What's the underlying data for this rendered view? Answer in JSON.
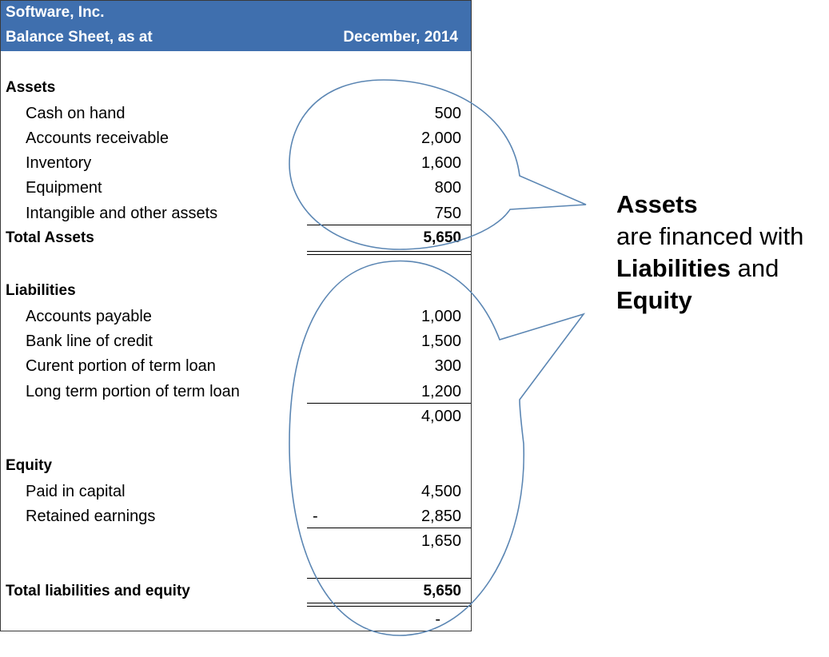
{
  "header": {
    "company": "Software, Inc.",
    "subtitle": "Balance Sheet, as at",
    "date": "December, 2014"
  },
  "assets": {
    "heading": "Assets",
    "items": [
      {
        "label": "Cash on hand",
        "value": "500"
      },
      {
        "label": "Accounts receivable",
        "value": "2,000"
      },
      {
        "label": "Inventory",
        "value": "1,600"
      },
      {
        "label": "Equipment",
        "value": "800"
      },
      {
        "label": "Intangible and other assets",
        "value": "750"
      }
    ],
    "total_label": "Total Assets",
    "total_value": "5,650"
  },
  "liabilities": {
    "heading": "Liabilities",
    "items": [
      {
        "label": "Accounts payable",
        "value": "1,000"
      },
      {
        "label": "Bank line of credit",
        "value": "1,500"
      },
      {
        "label": "Curent portion of term loan",
        "value": "300"
      },
      {
        "label": "Long term portion of term loan",
        "value": "1,200"
      }
    ],
    "subtotal": "4,000"
  },
  "equity": {
    "heading": "Equity",
    "items": [
      {
        "label": "Paid in capital",
        "value": "4,500"
      },
      {
        "label": "Retained earnings",
        "value": "2,850",
        "sign": "-"
      }
    ],
    "subtotal": "1,650"
  },
  "total_le": {
    "label": "Total liabilities and equity",
    "value": "5,650",
    "check": "-"
  },
  "callout": {
    "line1_bold": "Assets",
    "line2": "are financed with",
    "line3_bold": "Liabilities",
    "line3_rest": " and",
    "line4_bold": "Equity"
  },
  "colors": {
    "header_bg": "#3f6fae",
    "bubble_stroke": "#5b86b3"
  }
}
